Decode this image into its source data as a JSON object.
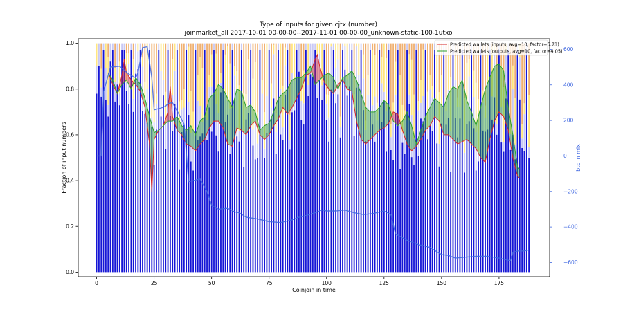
{
  "chart_data": {
    "type": "bar",
    "title": "Type of inputs for given cjtx (number)",
    "subtitle": "joinmarket_all 2017-10-01 00-00-00--2017-11-01 00-00-00_unknown-static-100-1utxo",
    "xlabel": "Coinjoin in time",
    "ylabel": "Fraction of input numbers",
    "y2label": "btc in mix",
    "xlim": [
      -8,
      197
    ],
    "ylim": [
      -0.02,
      1.02
    ],
    "y2lim": [
      -680,
      660
    ],
    "xticks": [
      "0",
      "25",
      "50",
      "75",
      "100",
      "125",
      "150",
      "175"
    ],
    "yticks": [
      "0.0",
      "0.2",
      "0.4",
      "0.6",
      "0.8",
      "1.0"
    ],
    "y2ticks": [
      "−600",
      "−400",
      "−200",
      "0",
      "200",
      "400",
      "600"
    ],
    "legend_position": "top-right",
    "grid": false,
    "colors": {
      "bar_blue": "#1515d6",
      "bar_lightblue": "#c8c8f5",
      "bar_yellow": "#ffe680",
      "bar_orange": "#f0b070",
      "inputs_line": "#d62728",
      "outputs_line": "#2ca02c",
      "btc_line": "#4169e1",
      "right_axis": "#4169e1"
    },
    "n_coinjoins": 189,
    "stacked_segments_bottom_to_top": [
      "blue",
      "lightblue",
      "yellow",
      "orange"
    ],
    "blue_fraction_profile": {
      "x": [
        0,
        5,
        10,
        15,
        20,
        25,
        30,
        35,
        40,
        45,
        50,
        55,
        60,
        65,
        70,
        75,
        80,
        85,
        90,
        95,
        100,
        105,
        110,
        115,
        120,
        125,
        130,
        135,
        140,
        145,
        150,
        155,
        160,
        165,
        170,
        175,
        180,
        188
      ],
      "values": [
        0.78,
        0.8,
        0.82,
        0.8,
        0.74,
        0.6,
        0.65,
        0.62,
        0.58,
        0.55,
        0.62,
        0.7,
        0.6,
        0.58,
        0.55,
        0.62,
        0.6,
        0.7,
        0.76,
        0.8,
        0.72,
        0.72,
        0.78,
        0.7,
        0.62,
        0.6,
        0.55,
        0.58,
        0.55,
        0.62,
        0.6,
        0.58,
        0.6,
        0.56,
        0.62,
        0.64,
        0.6,
        0.58
      ]
    },
    "series": [
      {
        "name": "Predicted wallets (inputs, avg=10, factor=5.73)",
        "axis": "left",
        "x": [
          5,
          7,
          9,
          11,
          12,
          13,
          15,
          17,
          19,
          21,
          23,
          24,
          25,
          27,
          29,
          31,
          32,
          33,
          35,
          37,
          39,
          41,
          43,
          45,
          47,
          49,
          51,
          53,
          55,
          57,
          59,
          61,
          63,
          65,
          67,
          69,
          71,
          73,
          75,
          77,
          79,
          81,
          83,
          85,
          87,
          89,
          91,
          93,
          95,
          96,
          97,
          99,
          101,
          103,
          105,
          107,
          109,
          111,
          113,
          115,
          117,
          119,
          121,
          123,
          125,
          127,
          129,
          131,
          133,
          135,
          137,
          139,
          141,
          143,
          145,
          147,
          149,
          151,
          153,
          155,
          157,
          159,
          161,
          163,
          165,
          167,
          169,
          171,
          173,
          175,
          177,
          179,
          181,
          183,
          184
        ],
        "values": [
          0.87,
          0.82,
          0.78,
          0.86,
          0.93,
          0.87,
          0.84,
          0.82,
          0.79,
          0.72,
          0.56,
          0.35,
          0.58,
          0.62,
          0.64,
          0.7,
          0.81,
          0.68,
          0.62,
          0.6,
          0.56,
          0.55,
          0.53,
          0.56,
          0.58,
          0.63,
          0.66,
          0.66,
          0.63,
          0.56,
          0.55,
          0.63,
          0.62,
          0.6,
          0.64,
          0.66,
          0.6,
          0.58,
          0.6,
          0.64,
          0.67,
          0.72,
          0.69,
          0.72,
          0.76,
          0.8,
          0.86,
          0.87,
          0.93,
          0.95,
          0.9,
          0.83,
          0.8,
          0.78,
          0.82,
          0.84,
          0.8,
          0.79,
          0.66,
          0.58,
          0.56,
          0.58,
          0.6,
          0.62,
          0.63,
          0.65,
          0.7,
          0.69,
          0.62,
          0.56,
          0.53,
          0.55,
          0.58,
          0.62,
          0.64,
          0.68,
          0.66,
          0.6,
          0.6,
          0.58,
          0.56,
          0.57,
          0.58,
          0.56,
          0.54,
          0.5,
          0.48,
          0.58,
          0.66,
          0.7,
          0.68,
          0.62,
          0.5,
          0.42,
          0.41
        ]
      },
      {
        "name": "Predicted wallets (outputs, avg=10, factor=4.05)",
        "axis": "left",
        "x": [
          5,
          7,
          9,
          11,
          13,
          15,
          17,
          19,
          21,
          23,
          25,
          27,
          29,
          31,
          33,
          35,
          37,
          39,
          41,
          43,
          45,
          47,
          49,
          51,
          53,
          55,
          57,
          59,
          61,
          63,
          65,
          67,
          69,
          71,
          73,
          75,
          77,
          79,
          81,
          83,
          85,
          87,
          89,
          91,
          93,
          95,
          97,
          99,
          101,
          103,
          105,
          107,
          109,
          111,
          113,
          115,
          117,
          119,
          121,
          123,
          125,
          127,
          129,
          131,
          133,
          135,
          137,
          139,
          141,
          143,
          145,
          147,
          149,
          151,
          153,
          155,
          157,
          159,
          161,
          163,
          165,
          167,
          169,
          171,
          173,
          175,
          177,
          179,
          181,
          183,
          184
        ],
        "values": [
          0.87,
          0.84,
          0.78,
          0.82,
          0.84,
          0.8,
          0.85,
          0.82,
          0.76,
          0.68,
          0.61,
          0.62,
          0.64,
          0.66,
          0.66,
          0.68,
          0.64,
          0.62,
          0.64,
          0.6,
          0.66,
          0.68,
          0.76,
          0.78,
          0.82,
          0.8,
          0.76,
          0.72,
          0.8,
          0.79,
          0.72,
          0.73,
          0.7,
          0.62,
          0.64,
          0.65,
          0.7,
          0.76,
          0.78,
          0.8,
          0.84,
          0.85,
          0.85,
          0.87,
          0.9,
          0.82,
          0.84,
          0.86,
          0.87,
          0.85,
          0.8,
          0.85,
          0.86,
          0.88,
          0.84,
          0.78,
          0.72,
          0.7,
          0.7,
          0.72,
          0.75,
          0.73,
          0.66,
          0.64,
          0.66,
          0.7,
          0.64,
          0.56,
          0.62,
          0.68,
          0.72,
          0.76,
          0.74,
          0.72,
          0.78,
          0.81,
          0.8,
          0.84,
          0.75,
          0.7,
          0.64,
          0.72,
          0.8,
          0.85,
          0.9,
          0.91,
          0.88,
          0.72,
          0.6,
          0.46,
          0.45
        ]
      },
      {
        "name": "btc in mix",
        "axis": "right",
        "x": [
          0,
          2,
          3,
          6,
          10,
          14,
          17,
          18,
          20,
          22,
          24,
          25,
          28,
          30,
          31,
          33,
          36,
          38,
          40,
          45,
          48,
          50,
          53,
          57,
          60,
          62,
          65,
          70,
          75,
          80,
          85,
          88,
          90,
          95,
          98,
          100,
          104,
          108,
          112,
          116,
          120,
          125,
          128,
          130,
          133,
          135,
          138,
          140,
          142,
          145,
          148,
          150,
          153,
          156,
          160,
          165,
          170,
          175,
          180,
          181,
          183,
          186,
          188
        ],
        "values": [
          0,
          0,
          360,
          500,
          505,
          460,
          440,
          470,
          610,
          615,
          440,
          260,
          270,
          280,
          295,
          300,
          230,
          180,
          -145,
          -130,
          -200,
          -280,
          -300,
          -295,
          -315,
          -320,
          -345,
          -355,
          -370,
          -375,
          -360,
          -345,
          -340,
          -320,
          -305,
          -310,
          -310,
          -305,
          -320,
          -330,
          -325,
          -310,
          -330,
          -440,
          -460,
          -475,
          -490,
          -500,
          -505,
          -515,
          -540,
          -555,
          -560,
          -575,
          -570,
          -565,
          -565,
          -575,
          -590,
          -545,
          -535,
          -535,
          -530
        ]
      }
    ]
  }
}
